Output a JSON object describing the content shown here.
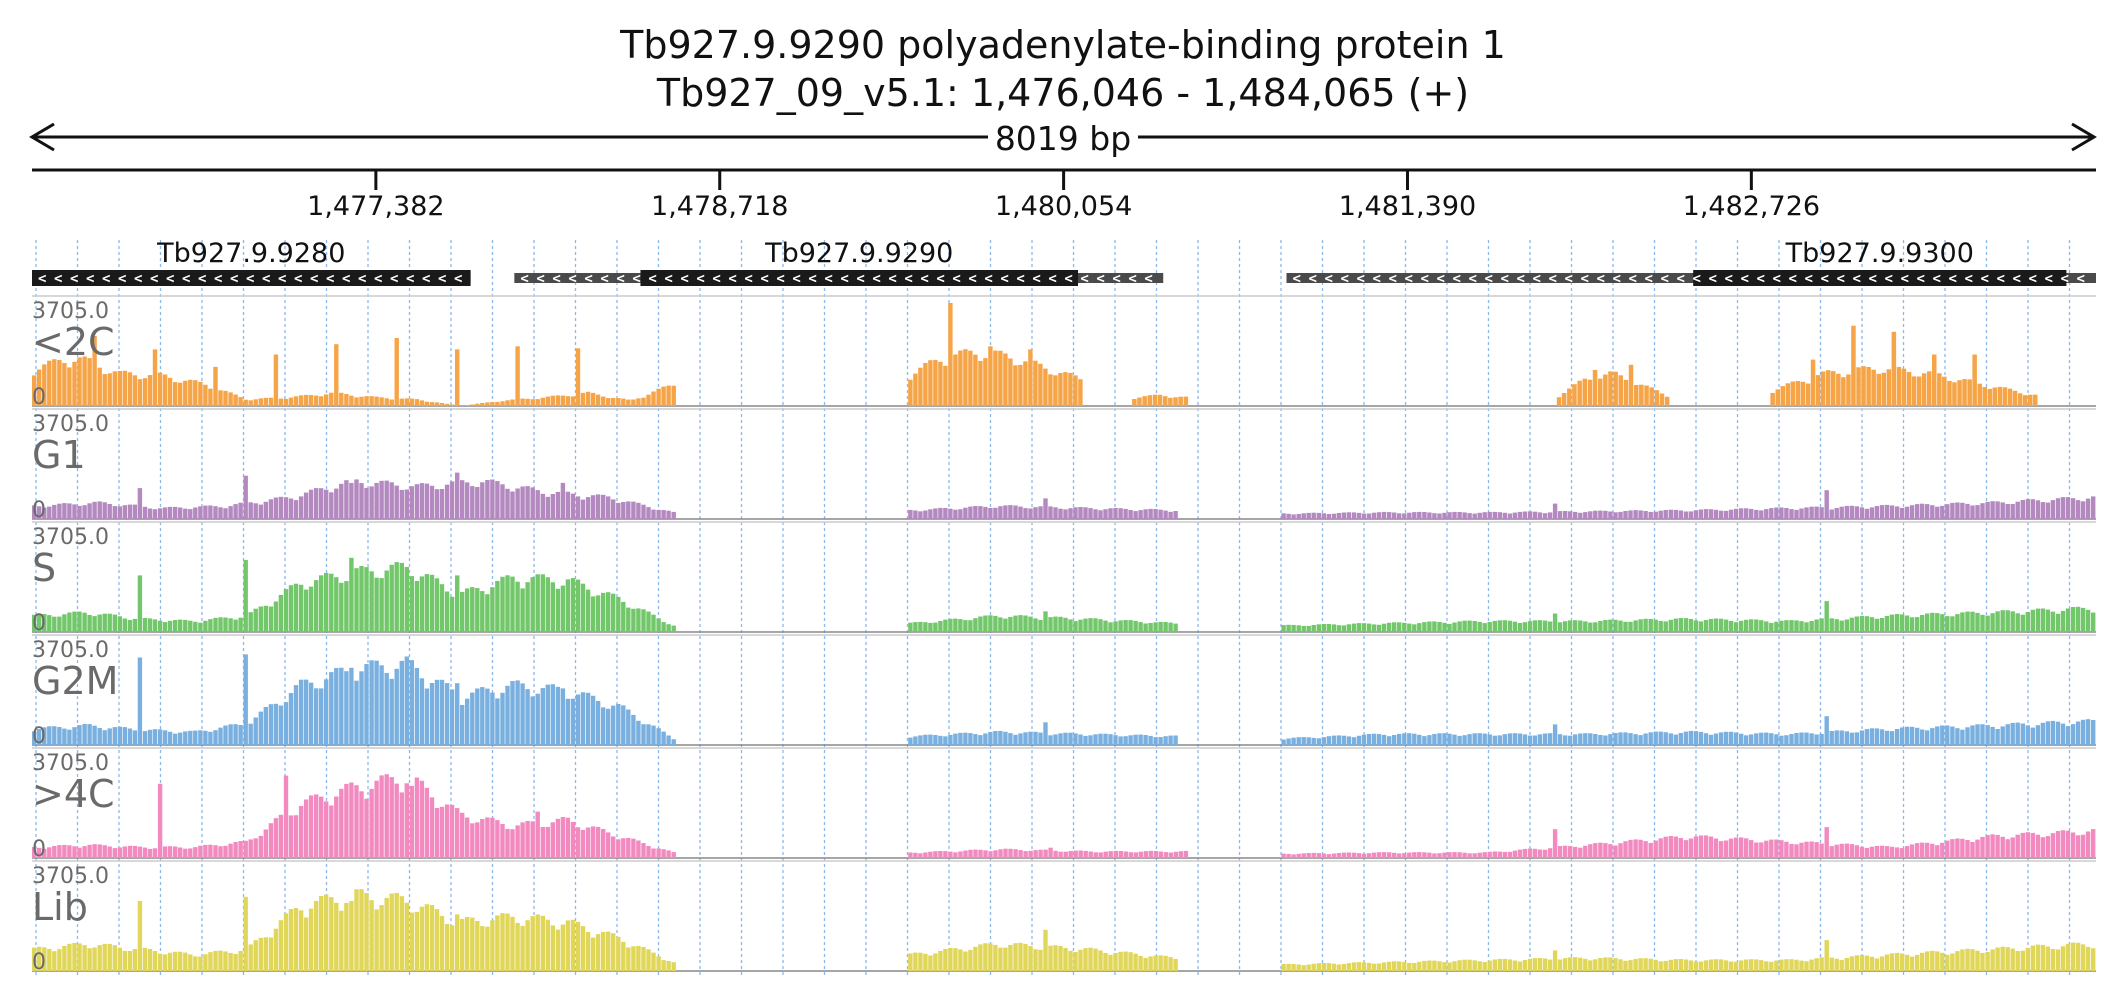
{
  "header": {
    "title_line1": "Tb927.9.9290  polyadenylate-binding protein 1",
    "title_line2": "Tb927_09_v5.1: 1,476,046 - 1,484,065 (+)",
    "span_label": "8019 bp"
  },
  "chart_data": {
    "type": "area",
    "title": "Tb927.9.9290  polyadenylate-binding protein 1",
    "subtitle": "Tb927_09_v5.1: 1,476,046 - 1,484,065 (+)",
    "xlim": [
      1476046,
      1484065
    ],
    "ticks": [
      {
        "pos": 1477382,
        "label": "1,477,382"
      },
      {
        "pos": 1478718,
        "label": "1,478,718"
      },
      {
        "pos": 1480054,
        "label": "1,480,054"
      },
      {
        "pos": 1481390,
        "label": "1,481,390"
      },
      {
        "pos": 1482726,
        "label": "1,482,726"
      }
    ],
    "genes": [
      {
        "name": "Tb927.9.9280",
        "start": 1476046,
        "end": 1477750,
        "cds_start": 1476046,
        "cds_end": 1477750,
        "strand": "-",
        "color": "#1a1a1a"
      },
      {
        "name": "Tb927.9.9290",
        "start": 1477920,
        "end": 1480441,
        "cds_start": 1478410,
        "cds_end": 1480110,
        "strand": "-",
        "color": "#1a1a1a"
      },
      {
        "name": "Tb927.9.9300",
        "start": 1480920,
        "end": 1484065,
        "cds_start": 1482500,
        "cds_end": 1483950,
        "strand": "-",
        "color": "#1a1a1a"
      }
    ],
    "tracks": [
      {
        "name": "<2C",
        "color": "#f5a447",
        "ymax": "3705.0",
        "ymin": "0",
        "max": 3705.0,
        "segments": [
          {
            "x0": 1476046,
            "x1": 1478550,
            "peaks": [
              0.35,
              0.45,
              0.3,
              0.28,
              0.2,
              0.06,
              0.08,
              0.12,
              0.08,
              0.06,
              0.0,
              0.05,
              0.08,
              0.12,
              0.05,
              0.2
            ],
            "spikes": [
              0.68,
              0.55,
              0.38,
              0.5,
              0.6,
              0.66,
              0.55,
              0.58,
              0.56
            ]
          },
          {
            "x0": 1479450,
            "x1": 1480130,
            "peaks": [
              0.3,
              0.45,
              0.5,
              0.45,
              0.35,
              0.25
            ],
            "spikes": [
              1.0,
              0.58,
              0.55
            ]
          },
          {
            "x0": 1480320,
            "x1": 1480540,
            "peaks": [
              0.08,
              0.1,
              0.08
            ],
            "spikes": []
          },
          {
            "x0": 1481970,
            "x1": 1482410,
            "peaks": [
              0.1,
              0.25,
              0.3,
              0.2,
              0.1
            ],
            "spikes": [
              0.35,
              0.4
            ]
          },
          {
            "x0": 1482800,
            "x1": 1483840,
            "peaks": [
              0.15,
              0.3,
              0.35,
              0.3,
              0.2,
              0.1
            ],
            "spikes": [
              0.45,
              0.78,
              0.72,
              0.5,
              0.5
            ]
          }
        ]
      },
      {
        "name": "G1",
        "color": "#b389c0",
        "ymax": "3705.0",
        "ymin": "0",
        "max": 3705.0,
        "segments": [
          {
            "x0": 1476046,
            "x1": 1478550,
            "peaks": [
              0.12,
              0.15,
              0.1,
              0.12,
              0.2,
              0.35,
              0.3,
              0.35,
              0.25,
              0.2,
              0.06
            ],
            "spikes": [
              0.3,
              0.42,
              0.35,
              0.45,
              0.35
            ]
          },
          {
            "x0": 1479450,
            "x1": 1480500,
            "peaks": [
              0.08,
              0.12,
              0.1,
              0.08
            ],
            "spikes": [
              0.2
            ]
          },
          {
            "x0": 1480900,
            "x1": 1484065,
            "peaks": [
              0.05,
              0.06,
              0.06,
              0.07,
              0.08,
              0.1,
              0.12,
              0.15,
              0.2
            ],
            "spikes": [
              0.15,
              0.28
            ]
          }
        ]
      },
      {
        "name": "S",
        "color": "#72c76a",
        "ymax": "3705.0",
        "ymin": "0",
        "max": 3705.0,
        "segments": [
          {
            "x0": 1476046,
            "x1": 1478550,
            "peaks": [
              0.15,
              0.18,
              0.12,
              0.1,
              0.15,
              0.45,
              0.55,
              0.6,
              0.35,
              0.5,
              0.48,
              0.3,
              0.06
            ],
            "spikes": [
              0.55,
              0.7,
              0.72,
              0.55,
              0.45
            ]
          },
          {
            "x0": 1479450,
            "x1": 1480500,
            "peaks": [
              0.08,
              0.15,
              0.12,
              0.08
            ],
            "spikes": [
              0.2
            ]
          },
          {
            "x0": 1480900,
            "x1": 1484065,
            "peaks": [
              0.06,
              0.08,
              0.1,
              0.1,
              0.12,
              0.1,
              0.15,
              0.18,
              0.22
            ],
            "spikes": [
              0.18,
              0.3
            ]
          }
        ]
      },
      {
        "name": "G2M",
        "color": "#7ab0e0",
        "ymax": "3705.0",
        "ymin": "0",
        "max": 3705.0,
        "segments": [
          {
            "x0": 1476046,
            "x1": 1478550,
            "peaks": [
              0.15,
              0.18,
              0.14,
              0.12,
              0.2,
              0.55,
              0.7,
              0.75,
              0.45,
              0.55,
              0.5,
              0.35,
              0.06
            ],
            "spikes": [
              0.85,
              0.88,
              0.75,
              0.6,
              0.55
            ]
          },
          {
            "x0": 1479450,
            "x1": 1480500,
            "peaks": [
              0.08,
              0.12,
              0.1,
              0.08
            ],
            "spikes": [
              0.22
            ]
          },
          {
            "x0": 1480900,
            "x1": 1484065,
            "peaks": [
              0.06,
              0.1,
              0.1,
              0.1,
              0.12,
              0.1,
              0.15,
              0.18,
              0.22
            ],
            "spikes": [
              0.2,
              0.28
            ]
          }
        ]
      },
      {
        "name": ">4C",
        "color": "#f28ac0",
        "ymax": "3705.0",
        "ymin": "0",
        "max": 3705.0,
        "segments": [
          {
            "x0": 1476046,
            "x1": 1478550,
            "peaks": [
              0.1,
              0.12,
              0.1,
              0.1,
              0.15,
              0.5,
              0.65,
              0.75,
              0.4,
              0.3,
              0.35,
              0.2,
              0.05
            ],
            "spikes": [
              0.72,
              0.8,
              0.7,
              0.45
            ]
          },
          {
            "x0": 1479450,
            "x1": 1480540,
            "peaks": [
              0.05,
              0.08,
              0.06,
              0.06
            ],
            "spikes": [
              0.1
            ]
          },
          {
            "x0": 1480900,
            "x1": 1484065,
            "peaks": [
              0.04,
              0.05,
              0.05,
              0.12,
              0.2,
              0.15,
              0.1,
              0.2,
              0.25
            ],
            "spikes": [
              0.28,
              0.3
            ]
          }
        ]
      },
      {
        "name": "Lib",
        "color": "#e0d75a",
        "ymax": "3705.0",
        "ymin": "0",
        "max": 3705.0,
        "segments": [
          {
            "x0": 1476046,
            "x1": 1478550,
            "peaks": [
              0.2,
              0.25,
              0.2,
              0.15,
              0.2,
              0.6,
              0.7,
              0.65,
              0.45,
              0.5,
              0.45,
              0.3,
              0.08
            ],
            "spikes": [
              0.68,
              0.72,
              0.68,
              0.55,
              0.45
            ]
          },
          {
            "x0": 1479450,
            "x1": 1480500,
            "peaks": [
              0.15,
              0.25,
              0.2,
              0.12
            ],
            "spikes": [
              0.4
            ]
          },
          {
            "x0": 1480900,
            "x1": 1484065,
            "peaks": [
              0.06,
              0.08,
              0.1,
              0.12,
              0.1,
              0.1,
              0.15,
              0.2,
              0.25
            ],
            "spikes": [
              0.2,
              0.3
            ]
          }
        ]
      }
    ],
    "grid": true,
    "grid_style": "dotted",
    "grid_color": "#8fb8e6"
  }
}
